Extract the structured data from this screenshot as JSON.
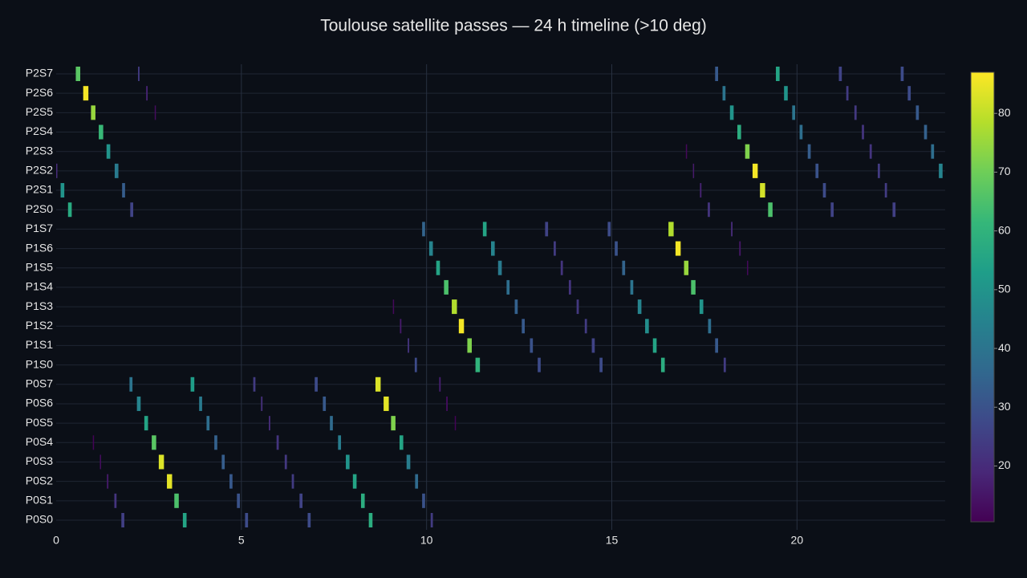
{
  "chart_data": {
    "type": "timeline",
    "title": "Toulouse satellite passes — 24 h timeline (>10 deg)",
    "xlim": [
      0,
      24
    ],
    "xticks": [
      0,
      5,
      10,
      15,
      20
    ],
    "grid": true,
    "colorscale": "Viridis",
    "clim": [
      10.5,
      87
    ],
    "colorbar_ticks": [
      20,
      30,
      40,
      50,
      60,
      70,
      80
    ],
    "rows": [
      {
        "name": "P0S0",
        "passes": [
          [
            1.76,
            1.84,
            25
          ],
          [
            3.42,
            3.52,
            55
          ],
          [
            5.1,
            5.18,
            28
          ],
          [
            6.79,
            6.87,
            28
          ],
          [
            8.44,
            8.54,
            58
          ],
          [
            10.11,
            10.17,
            24
          ]
        ]
      },
      {
        "name": "P0S1",
        "passes": [
          [
            1.57,
            1.63,
            22
          ],
          [
            3.19,
            3.31,
            65
          ],
          [
            4.88,
            4.96,
            30
          ],
          [
            6.57,
            6.65,
            26
          ],
          [
            8.23,
            8.33,
            58
          ],
          [
            9.88,
            9.96,
            30
          ]
        ]
      },
      {
        "name": "P0S2",
        "passes": [
          [
            1.37,
            1.41,
            16
          ],
          [
            2.99,
            3.13,
            84
          ],
          [
            4.68,
            4.76,
            32
          ],
          [
            6.36,
            6.42,
            24
          ],
          [
            8.01,
            8.11,
            55
          ],
          [
            9.69,
            9.77,
            37
          ]
        ]
      },
      {
        "name": "P0S3",
        "passes": [
          [
            1.18,
            1.2,
            13
          ],
          [
            2.77,
            2.91,
            83
          ],
          [
            4.47,
            4.55,
            33
          ],
          [
            6.17,
            6.23,
            23
          ],
          [
            7.82,
            7.92,
            50
          ],
          [
            9.46,
            9.56,
            43
          ]
        ]
      },
      {
        "name": "P0S4",
        "passes": [
          [
            0.99,
            1.01,
            11
          ],
          [
            2.58,
            2.7,
            67
          ],
          [
            4.27,
            4.35,
            34
          ],
          [
            5.95,
            6.01,
            22
          ],
          [
            7.61,
            7.69,
            43
          ],
          [
            9.27,
            9.37,
            55
          ]
        ]
      },
      {
        "name": "P0S5",
        "passes": [
          [
            2.38,
            2.48,
            55
          ],
          [
            4.06,
            4.14,
            38
          ],
          [
            5.74,
            5.78,
            20
          ],
          [
            7.39,
            7.47,
            37
          ],
          [
            9.04,
            9.16,
            72
          ],
          [
            10.76,
            10.78,
            11
          ]
        ]
      },
      {
        "name": "P0S6",
        "passes": [
          [
            2.18,
            2.28,
            45
          ],
          [
            3.86,
            3.94,
            42
          ],
          [
            5.53,
            5.57,
            21
          ],
          [
            7.2,
            7.28,
            32
          ],
          [
            8.84,
            8.98,
            84
          ],
          [
            10.53,
            10.57,
            13
          ]
        ]
      },
      {
        "name": "P0S7",
        "passes": [
          [
            1.98,
            2.06,
            40
          ],
          [
            3.63,
            3.73,
            53
          ],
          [
            5.32,
            5.38,
            24
          ],
          [
            6.98,
            7.06,
            28
          ],
          [
            8.62,
            8.76,
            83
          ],
          [
            10.34,
            10.38,
            17
          ]
        ]
      },
      {
        "name": "P1S0",
        "passes": [
          [
            9.68,
            9.74,
            28
          ],
          [
            11.32,
            11.44,
            60
          ],
          [
            13.0,
            13.08,
            28
          ],
          [
            14.67,
            14.75,
            28
          ],
          [
            16.33,
            16.43,
            58
          ],
          [
            18.02,
            18.08,
            24
          ]
        ]
      },
      {
        "name": "P1S1",
        "passes": [
          [
            9.49,
            9.53,
            22
          ],
          [
            11.1,
            11.22,
            72
          ],
          [
            12.79,
            12.87,
            30
          ],
          [
            14.46,
            14.54,
            26
          ],
          [
            16.11,
            16.21,
            55
          ],
          [
            17.79,
            17.87,
            32
          ]
        ]
      },
      {
        "name": "P1S2",
        "passes": [
          [
            9.28,
            9.32,
            16
          ],
          [
            10.87,
            11.01,
            86
          ],
          [
            12.57,
            12.65,
            32
          ],
          [
            14.27,
            14.33,
            24
          ],
          [
            15.9,
            16.0,
            48
          ],
          [
            17.6,
            17.68,
            38
          ]
        ]
      },
      {
        "name": "P1S3",
        "passes": [
          [
            9.09,
            9.11,
            12
          ],
          [
            10.68,
            10.82,
            78
          ],
          [
            12.38,
            12.46,
            34
          ],
          [
            14.05,
            14.11,
            23
          ],
          [
            15.7,
            15.8,
            45
          ],
          [
            17.37,
            17.47,
            50
          ]
        ]
      },
      {
        "name": "P1S4",
        "passes": [
          [
            10.47,
            10.59,
            65
          ],
          [
            12.16,
            12.24,
            38
          ],
          [
            13.84,
            13.9,
            22
          ],
          [
            15.5,
            15.58,
            40
          ],
          [
            17.14,
            17.26,
            65
          ]
        ]
      },
      {
        "name": "P1S5",
        "passes": [
          [
            10.26,
            10.36,
            55
          ],
          [
            11.93,
            12.03,
            42
          ],
          [
            13.62,
            13.68,
            22
          ],
          [
            15.28,
            15.36,
            35
          ],
          [
            16.95,
            17.07,
            75
          ],
          [
            18.65,
            18.67,
            12
          ]
        ]
      },
      {
        "name": "P1S6",
        "passes": [
          [
            10.07,
            10.17,
            45
          ],
          [
            11.74,
            11.84,
            45
          ],
          [
            13.43,
            13.49,
            24
          ],
          [
            15.08,
            15.16,
            30
          ],
          [
            16.72,
            16.86,
            86
          ],
          [
            18.44,
            18.48,
            15
          ]
        ]
      },
      {
        "name": "P1S7",
        "passes": [
          [
            9.88,
            9.96,
            35
          ],
          [
            11.52,
            11.62,
            55
          ],
          [
            13.2,
            13.28,
            26
          ],
          [
            14.89,
            14.97,
            28
          ],
          [
            16.53,
            16.67,
            78
          ],
          [
            18.22,
            18.26,
            20
          ]
        ]
      },
      {
        "name": "P2S0",
        "passes": [
          [
            0.32,
            0.42,
            57
          ],
          [
            2.0,
            2.08,
            26
          ],
          [
            17.59,
            17.65,
            22
          ],
          [
            19.22,
            19.34,
            65
          ],
          [
            20.91,
            20.99,
            26
          ],
          [
            22.58,
            22.66,
            25
          ]
        ]
      },
      {
        "name": "P2S1",
        "passes": [
          [
            0.12,
            0.22,
            50
          ],
          [
            1.78,
            1.86,
            33
          ],
          [
            17.38,
            17.42,
            18
          ],
          [
            19.0,
            19.14,
            82
          ],
          [
            20.7,
            20.78,
            28
          ],
          [
            22.37,
            22.43,
            24
          ]
        ]
      },
      {
        "name": "P2S2",
        "passes": [
          [
            0.0,
            0.02,
            20
          ],
          [
            1.58,
            1.68,
            42
          ],
          [
            17.19,
            17.21,
            16
          ],
          [
            18.8,
            18.94,
            86
          ],
          [
            20.5,
            20.58,
            30
          ],
          [
            22.18,
            22.24,
            24
          ],
          [
            23.83,
            23.93,
            45
          ]
        ]
      },
      {
        "name": "P2S3",
        "passes": [
          [
            1.36,
            1.46,
            50
          ],
          [
            17.0,
            17.02,
            12
          ],
          [
            18.6,
            18.72,
            72
          ],
          [
            20.29,
            20.37,
            33
          ],
          [
            21.96,
            22.02,
            22
          ],
          [
            23.62,
            23.7,
            38
          ]
        ]
      },
      {
        "name": "P2S4",
        "passes": [
          [
            1.15,
            1.27,
            62
          ],
          [
            18.39,
            18.49,
            58
          ],
          [
            20.07,
            20.15,
            38
          ],
          [
            21.75,
            21.81,
            22
          ],
          [
            23.43,
            23.51,
            34
          ]
        ]
      },
      {
        "name": "P2S5",
        "passes": [
          [
            0.94,
            1.06,
            75
          ],
          [
            2.66,
            2.68,
            13
          ],
          [
            18.19,
            18.29,
            50
          ],
          [
            19.87,
            19.95,
            40
          ],
          [
            21.55,
            21.61,
            23
          ],
          [
            23.21,
            23.29,
            32
          ]
        ]
      },
      {
        "name": "P2S6",
        "passes": [
          [
            0.73,
            0.87,
            86
          ],
          [
            2.43,
            2.47,
            18
          ],
          [
            17.99,
            18.07,
            40
          ],
          [
            19.65,
            19.75,
            50
          ],
          [
            21.33,
            21.39,
            24
          ],
          [
            22.99,
            23.07,
            28
          ]
        ]
      },
      {
        "name": "P2S7",
        "passes": [
          [
            0.53,
            0.65,
            67
          ],
          [
            2.21,
            2.25,
            24
          ],
          [
            17.79,
            17.87,
            32
          ],
          [
            19.43,
            19.53,
            55
          ],
          [
            21.13,
            21.21,
            26
          ],
          [
            22.8,
            22.88,
            28
          ]
        ]
      }
    ]
  }
}
